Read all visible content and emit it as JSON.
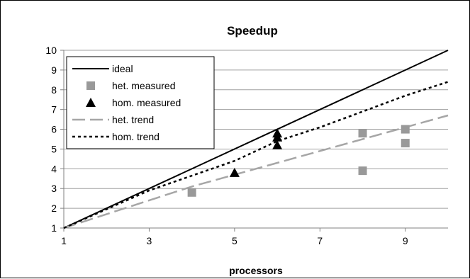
{
  "chart_data": {
    "type": "scatter",
    "title": "Speedup",
    "xlabel": "processors",
    "ylabel": "",
    "xlim": [
      1,
      10
    ],
    "ylim": [
      1,
      10
    ],
    "xticks": [
      1,
      3,
      5,
      7,
      9
    ],
    "yticks": [
      1,
      2,
      3,
      4,
      5,
      6,
      7,
      8,
      9,
      10
    ],
    "grid": {
      "horizontal": true,
      "vertical": false
    },
    "legend_position": "top-left",
    "series": [
      {
        "name": "ideal",
        "kind": "line",
        "style": "solid",
        "color": "#000000",
        "points": [
          [
            1,
            1
          ],
          [
            10,
            10
          ]
        ]
      },
      {
        "name": "het. measured",
        "kind": "marker",
        "marker": "square",
        "color": "#999999",
        "points": [
          [
            4,
            2.8
          ],
          [
            8,
            3.9
          ],
          [
            8,
            5.8
          ],
          [
            9,
            5.3
          ],
          [
            9,
            6.0
          ]
        ]
      },
      {
        "name": "hom. measured",
        "kind": "marker",
        "marker": "triangle",
        "color": "#000000",
        "points": [
          [
            5,
            3.8
          ],
          [
            6,
            5.2
          ],
          [
            6,
            5.6
          ],
          [
            6,
            5.8
          ]
        ]
      },
      {
        "name": "het. trend",
        "kind": "line",
        "style": "dashed",
        "color": "#a6a6a6",
        "points": [
          [
            1,
            1
          ],
          [
            4,
            3.1
          ],
          [
            6,
            4.3
          ],
          [
            8,
            5.5
          ],
          [
            10,
            6.7
          ]
        ]
      },
      {
        "name": "hom. trend",
        "kind": "line",
        "style": "dotted",
        "color": "#000000",
        "points": [
          [
            1,
            1
          ],
          [
            3,
            2.9
          ],
          [
            5,
            4.4
          ],
          [
            6,
            5.4
          ],
          [
            7,
            6.1
          ],
          [
            8,
            6.9
          ],
          [
            9,
            7.7
          ],
          [
            10,
            8.4
          ]
        ]
      }
    ]
  }
}
